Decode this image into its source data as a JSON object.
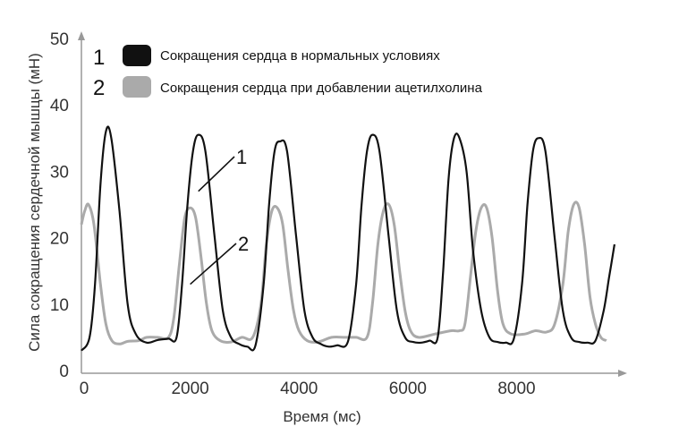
{
  "chart_data": {
    "type": "line",
    "xlabel": "Время (мс)",
    "ylabel": "Сила сокращения сердечной мышцы (мН)",
    "xlim": [
      0,
      9900
    ],
    "ylim": [
      0,
      50
    ],
    "xticks": [
      0,
      2000,
      4000,
      6000,
      8000
    ],
    "yticks": [
      0,
      10,
      20,
      30,
      40,
      50
    ],
    "xtick_labels": [
      "0",
      "2000",
      "4000",
      "6000",
      "8000"
    ],
    "ytick_labels": [
      "0",
      "10",
      "20",
      "30",
      "40",
      "50"
    ],
    "grid": false,
    "legend": {
      "position": "top",
      "entries": [
        {
          "number": "1",
          "text": "Сокращения сердца в нормальных условиях",
          "color": "#111111"
        },
        {
          "number": "2",
          "text": "Сокращения сердца при добавлении ацетилхолина",
          "color": "#aaaaaa"
        }
      ]
    },
    "curve_labels": [
      {
        "text": "1",
        "series": 0,
        "anchor": [
          2150,
          27
        ]
      },
      {
        "text": "2",
        "series": 1,
        "anchor": [
          2000,
          13
        ]
      }
    ],
    "series": [
      {
        "name": "1",
        "color": "#111111",
        "points": [
          [
            0,
            3
          ],
          [
            150,
            5
          ],
          [
            250,
            13
          ],
          [
            350,
            28
          ],
          [
            450,
            36
          ],
          [
            550,
            35
          ],
          [
            700,
            24
          ],
          [
            850,
            10
          ],
          [
            1000,
            5.5
          ],
          [
            1200,
            4.2
          ],
          [
            1400,
            4.6
          ],
          [
            1600,
            4.8
          ],
          [
            1750,
            5
          ],
          [
            1850,
            13
          ],
          [
            1950,
            25
          ],
          [
            2050,
            33
          ],
          [
            2150,
            35.5
          ],
          [
            2280,
            33
          ],
          [
            2450,
            20
          ],
          [
            2600,
            9
          ],
          [
            2750,
            5
          ],
          [
            2900,
            4
          ],
          [
            3050,
            3.6
          ],
          [
            3200,
            3.8
          ],
          [
            3350,
            13
          ],
          [
            3450,
            25
          ],
          [
            3550,
            33
          ],
          [
            3650,
            34.5
          ],
          [
            3780,
            33
          ],
          [
            3950,
            20
          ],
          [
            4100,
            9
          ],
          [
            4250,
            5
          ],
          [
            4400,
            4
          ],
          [
            4550,
            3.6
          ],
          [
            4700,
            3.8
          ],
          [
            4900,
            4.4
          ],
          [
            5050,
            13
          ],
          [
            5150,
            25
          ],
          [
            5250,
            33
          ],
          [
            5350,
            35.5
          ],
          [
            5480,
            33
          ],
          [
            5650,
            20
          ],
          [
            5800,
            9
          ],
          [
            5950,
            5
          ],
          [
            6100,
            4.3
          ],
          [
            6250,
            4.2
          ],
          [
            6400,
            4.5
          ],
          [
            6550,
            5
          ],
          [
            6650,
            15
          ],
          [
            6750,
            29
          ],
          [
            6850,
            35
          ],
          [
            6950,
            35
          ],
          [
            7080,
            30
          ],
          [
            7200,
            18
          ],
          [
            7350,
            9
          ],
          [
            7500,
            5
          ],
          [
            7650,
            4.3
          ],
          [
            7800,
            4.2
          ],
          [
            7950,
            4.8
          ],
          [
            8100,
            13
          ],
          [
            8200,
            25
          ],
          [
            8300,
            33
          ],
          [
            8400,
            35
          ],
          [
            8530,
            33
          ],
          [
            8700,
            20
          ],
          [
            8850,
            9
          ],
          [
            9000,
            5
          ],
          [
            9150,
            4.3
          ],
          [
            9300,
            4.2
          ],
          [
            9450,
            4.5
          ],
          [
            9600,
            9
          ],
          [
            9700,
            14
          ],
          [
            9800,
            19
          ]
        ]
      },
      {
        "name": "2",
        "color": "#aaaaaa",
        "points": [
          [
            0,
            22
          ],
          [
            60,
            24
          ],
          [
            130,
            25
          ],
          [
            230,
            22
          ],
          [
            350,
            13
          ],
          [
            450,
            7
          ],
          [
            560,
            4.5
          ],
          [
            700,
            4
          ],
          [
            850,
            4.4
          ],
          [
            1050,
            4.5
          ],
          [
            1200,
            5
          ],
          [
            1400,
            5
          ],
          [
            1600,
            5
          ],
          [
            1700,
            8
          ],
          [
            1800,
            16
          ],
          [
            1900,
            23
          ],
          [
            2000,
            24.5
          ],
          [
            2100,
            23
          ],
          [
            2200,
            17
          ],
          [
            2300,
            10
          ],
          [
            2400,
            6
          ],
          [
            2550,
            4.5
          ],
          [
            2750,
            4.3
          ],
          [
            2950,
            5
          ],
          [
            3150,
            5
          ],
          [
            3300,
            10
          ],
          [
            3400,
            19
          ],
          [
            3500,
            24
          ],
          [
            3600,
            24.5
          ],
          [
            3700,
            22
          ],
          [
            3800,
            15
          ],
          [
            3900,
            9
          ],
          [
            4000,
            6
          ],
          [
            4150,
            4.5
          ],
          [
            4350,
            4.3
          ],
          [
            4600,
            5
          ],
          [
            4850,
            5
          ],
          [
            5050,
            5
          ],
          [
            5250,
            5
          ],
          [
            5350,
            10
          ],
          [
            5450,
            19
          ],
          [
            5550,
            24
          ],
          [
            5650,
            25
          ],
          [
            5750,
            22
          ],
          [
            5850,
            15
          ],
          [
            5950,
            9
          ],
          [
            6050,
            6
          ],
          [
            6200,
            5
          ],
          [
            6500,
            5.5
          ],
          [
            6800,
            6
          ],
          [
            6950,
            6
          ],
          [
            7050,
            7
          ],
          [
            7150,
            14
          ],
          [
            7250,
            21
          ],
          [
            7350,
            24.5
          ],
          [
            7450,
            24.5
          ],
          [
            7550,
            20
          ],
          [
            7650,
            12
          ],
          [
            7750,
            7
          ],
          [
            7900,
            5.5
          ],
          [
            8150,
            5.5
          ],
          [
            8350,
            6
          ],
          [
            8550,
            5.8
          ],
          [
            8700,
            7
          ],
          [
            8850,
            13
          ],
          [
            8950,
            21
          ],
          [
            9050,
            25
          ],
          [
            9150,
            24.5
          ],
          [
            9250,
            19
          ],
          [
            9350,
            11
          ],
          [
            9450,
            7
          ],
          [
            9550,
            5
          ],
          [
            9650,
            4.5
          ]
        ]
      }
    ]
  }
}
